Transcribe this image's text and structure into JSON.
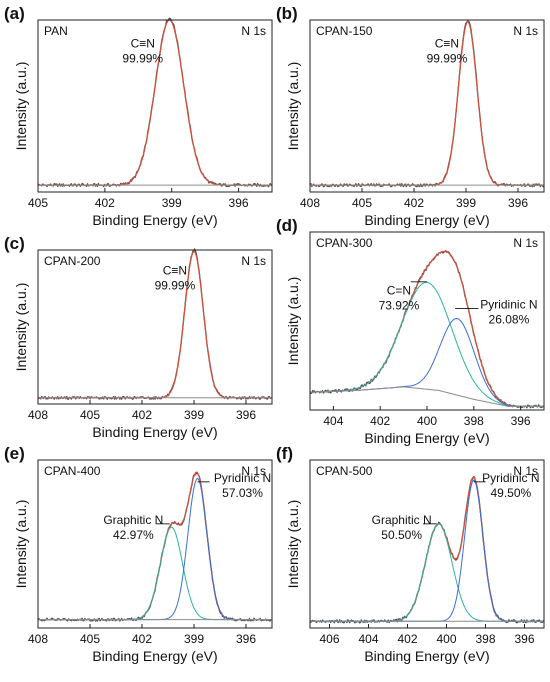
{
  "chart_data": [
    {
      "letter": "(a)",
      "sample": "PAN",
      "region": "N 1s",
      "type": "line",
      "xlabel": "Binding Energy (eV)",
      "ylabel": "Intensity (a.u.)",
      "xlim": [
        405,
        394.5
      ],
      "xticks": [
        405,
        402,
        399,
        396
      ],
      "ylim": [
        0,
        1.0
      ],
      "series": [
        {
          "role": "raw",
          "color": "#505050",
          "baseline": 0.04,
          "peaks": [
            {
              "center": 399.1,
              "height": 0.97,
              "fwhm": 1.5
            }
          ]
        },
        {
          "role": "fit",
          "color": "#d7503c",
          "baseline": 0.04,
          "peaks": [
            {
              "center": 399.1,
              "height": 0.96,
              "fwhm": 1.5
            }
          ]
        },
        {
          "role": "background",
          "color": "#8c8c8c",
          "baseline": 0.04,
          "peaks": []
        }
      ],
      "annotations": [
        {
          "lines": [
            "C≡N",
            "99.99%"
          ],
          "x": 400.3,
          "y": 0.84,
          "anchor": "middle"
        }
      ]
    },
    {
      "letter": "(b)",
      "sample": "CPAN-150",
      "region": "N 1s",
      "type": "line",
      "xlabel": "Binding Energy (eV)",
      "ylabel": "Intensity (a.u.)",
      "xlim": [
        408,
        394.5
      ],
      "xticks": [
        408,
        405,
        402,
        399,
        396
      ],
      "ylim": [
        0,
        1.0
      ],
      "series": [
        {
          "role": "raw",
          "color": "#505050",
          "baseline": 0.04,
          "peaks": [
            {
              "center": 398.9,
              "height": 0.96,
              "fwhm": 1.25
            }
          ]
        },
        {
          "role": "fit",
          "color": "#d7503c",
          "baseline": 0.04,
          "peaks": [
            {
              "center": 398.9,
              "height": 0.95,
              "fwhm": 1.25
            }
          ]
        },
        {
          "role": "background",
          "color": "#8c8c8c",
          "baseline": 0.04,
          "peaks": []
        }
      ],
      "annotations": [
        {
          "lines": [
            "C≡N",
            "99.99%"
          ],
          "x": 400.1,
          "y": 0.84,
          "anchor": "middle"
        }
      ]
    },
    {
      "letter": "(c)",
      "sample": "CPAN-200",
      "region": "N 1s",
      "type": "line",
      "xlabel": "Binding Energy (eV)",
      "ylabel": "Intensity (a.u.)",
      "xlim": [
        408,
        394.5
      ],
      "xticks": [
        408,
        405,
        402,
        399,
        396
      ],
      "ylim": [
        0,
        1.0
      ],
      "series": [
        {
          "role": "raw",
          "color": "#505050",
          "baseline": 0.04,
          "peaks": [
            {
              "center": 399.0,
              "height": 0.96,
              "fwhm": 1.25
            }
          ]
        },
        {
          "role": "fit",
          "color": "#d7503c",
          "baseline": 0.04,
          "peaks": [
            {
              "center": 399.0,
              "height": 0.95,
              "fwhm": 1.25
            }
          ]
        },
        {
          "role": "background",
          "color": "#8c8c8c",
          "baseline": 0.04,
          "peaks": []
        }
      ],
      "annotations": [
        {
          "lines": [
            "C≡N",
            "99.99%"
          ],
          "x": 400.1,
          "y": 0.84,
          "anchor": "middle"
        }
      ]
    },
    {
      "letter": "(d)",
      "sample": "CPAN-300",
      "region": "N 1s",
      "type": "line",
      "xlabel": "Binding Energy (eV)",
      "ylabel": "Intensity (a.u.)",
      "xlim": [
        405,
        395
      ],
      "xticks": [
        404,
        402,
        400,
        398,
        396
      ],
      "ylim": [
        0,
        1.0
      ],
      "series": [
        {
          "role": "raw",
          "color": "#505050",
          "baseline": 0.1,
          "bg": [
            405,
            0.1,
            403,
            0.11,
            401,
            0.13,
            399.5,
            0.11,
            398,
            0.06,
            396.5,
            0.02,
            395,
            0.02
          ],
          "peaks": [
            {
              "center": 400.0,
              "height": 0.6,
              "fwhm": 2.5
            },
            {
              "center": 398.7,
              "height": 0.43,
              "fwhm": 1.7
            }
          ]
        },
        {
          "role": "fit",
          "color": "#d7503c",
          "baseline": 0.1,
          "bg": [
            405,
            0.1,
            403,
            0.11,
            401,
            0.13,
            399.5,
            0.11,
            398,
            0.06,
            396.5,
            0.02,
            395,
            0.02
          ],
          "peaks": [
            {
              "center": 400.0,
              "height": 0.6,
              "fwhm": 2.5
            },
            {
              "center": 398.7,
              "height": 0.43,
              "fwhm": 1.7
            }
          ]
        },
        {
          "role": "component",
          "color": "#2eb5a0",
          "baseline": 0.1,
          "bg": [
            405,
            0.1,
            403,
            0.11,
            401,
            0.13,
            399.5,
            0.11,
            398,
            0.06,
            396.5,
            0.02,
            395,
            0.02
          ],
          "peaks": [
            {
              "center": 400.0,
              "height": 0.6,
              "fwhm": 2.5
            }
          ]
        },
        {
          "role": "component",
          "color": "#3a6fd8",
          "baseline": 0.1,
          "bg": [
            405,
            0.1,
            403,
            0.11,
            401,
            0.13,
            399.5,
            0.11,
            398,
            0.06,
            396.5,
            0.02,
            395,
            0.02
          ],
          "peaks": [
            {
              "center": 398.7,
              "height": 0.43,
              "fwhm": 1.7
            }
          ]
        },
        {
          "role": "background",
          "color": "#8c8c8c",
          "baseline": 0.1,
          "bg": [
            405,
            0.1,
            403,
            0.11,
            401,
            0.13,
            399.5,
            0.11,
            398,
            0.06,
            396.5,
            0.02,
            395,
            0.02
          ],
          "peaks": []
        }
      ],
      "annotations": [
        {
          "lines": [
            "C=N",
            "73.92%"
          ],
          "x": 401.2,
          "y": 0.65,
          "anchor": "middle",
          "leader": [
            400.7,
            0.72,
            400.0,
            0.72
          ]
        },
        {
          "lines": [
            "Pyridinic N",
            "26.08%"
          ],
          "x": 396.5,
          "y": 0.57,
          "anchor": "middle",
          "leader": [
            398.8,
            0.57,
            397.8,
            0.57
          ]
        }
      ]
    },
    {
      "letter": "(e)",
      "sample": "CPAN-400",
      "region": "N 1s",
      "type": "line",
      "xlabel": "Binding Energy (eV)",
      "ylabel": "Intensity (a.u.)",
      "xlim": [
        408,
        394.5
      ],
      "xticks": [
        408,
        405,
        402,
        399,
        396
      ],
      "ylim": [
        0,
        1.0
      ],
      "series": [
        {
          "role": "raw",
          "color": "#505050",
          "baseline": 0.05,
          "peaks": [
            {
              "center": 400.3,
              "height": 0.55,
              "fwhm": 1.5
            },
            {
              "center": 398.8,
              "height": 0.84,
              "fwhm": 1.3
            }
          ]
        },
        {
          "role": "fit",
          "color": "#d7503c",
          "baseline": 0.05,
          "peaks": [
            {
              "center": 400.3,
              "height": 0.55,
              "fwhm": 1.5
            },
            {
              "center": 398.8,
              "height": 0.84,
              "fwhm": 1.3
            }
          ]
        },
        {
          "role": "component",
          "color": "#2eb5a0",
          "baseline": 0.05,
          "peaks": [
            {
              "center": 400.3,
              "height": 0.55,
              "fwhm": 1.5
            }
          ]
        },
        {
          "role": "component",
          "color": "#3a6fd8",
          "baseline": 0.05,
          "peaks": [
            {
              "center": 398.8,
              "height": 0.84,
              "fwhm": 1.3
            }
          ]
        },
        {
          "role": "background",
          "color": "#8c8c8c",
          "baseline": 0.05,
          "peaks": []
        }
      ],
      "annotations": [
        {
          "lines": [
            "Graphitic N",
            "42.97%"
          ],
          "x": 402.5,
          "y": 0.62,
          "anchor": "middle",
          "leader": [
            401.2,
            0.62,
            400.4,
            0.62
          ]
        },
        {
          "lines": [
            "Pyridinic N",
            "57.03%"
          ],
          "x": 396.2,
          "y": 0.87,
          "anchor": "middle",
          "leader": [
            398.8,
            0.87,
            398.1,
            0.87
          ]
        }
      ]
    },
    {
      "letter": "(f)",
      "sample": "CPAN-500",
      "region": "N 1s",
      "type": "line",
      "xlabel": "Binding Energy (eV)",
      "ylabel": "Intensity (a.u.)",
      "xlim": [
        407,
        395
      ],
      "xticks": [
        406,
        404,
        402,
        400,
        398,
        396
      ],
      "ylim": [
        0,
        1.0
      ],
      "series": [
        {
          "role": "raw",
          "color": "#505050",
          "baseline": 0.04,
          "peaks": [
            {
              "center": 400.4,
              "height": 0.58,
              "fwhm": 1.6
            },
            {
              "center": 398.6,
              "height": 0.84,
              "fwhm": 1.1
            }
          ]
        },
        {
          "role": "fit",
          "color": "#d7503c",
          "baseline": 0.04,
          "peaks": [
            {
              "center": 400.4,
              "height": 0.58,
              "fwhm": 1.6
            },
            {
              "center": 398.6,
              "height": 0.84,
              "fwhm": 1.1
            }
          ]
        },
        {
          "role": "component",
          "color": "#2eb5a0",
          "baseline": 0.04,
          "peaks": [
            {
              "center": 400.4,
              "height": 0.58,
              "fwhm": 1.6
            }
          ]
        },
        {
          "role": "component",
          "color": "#3a6fd8",
          "baseline": 0.04,
          "peaks": [
            {
              "center": 398.6,
              "height": 0.84,
              "fwhm": 1.1
            }
          ]
        },
        {
          "role": "background",
          "color": "#8c8c8c",
          "baseline": 0.04,
          "peaks": []
        }
      ],
      "annotations": [
        {
          "lines": [
            "Graphitic N",
            "50.50%"
          ],
          "x": 402.3,
          "y": 0.62,
          "anchor": "middle",
          "leader": [
            401.2,
            0.62,
            400.5,
            0.62
          ]
        },
        {
          "lines": [
            "Pyridinic N",
            "49.50%"
          ],
          "x": 396.7,
          "y": 0.87,
          "anchor": "middle",
          "leader": [
            398.6,
            0.87,
            398.0,
            0.87
          ]
        }
      ]
    }
  ]
}
